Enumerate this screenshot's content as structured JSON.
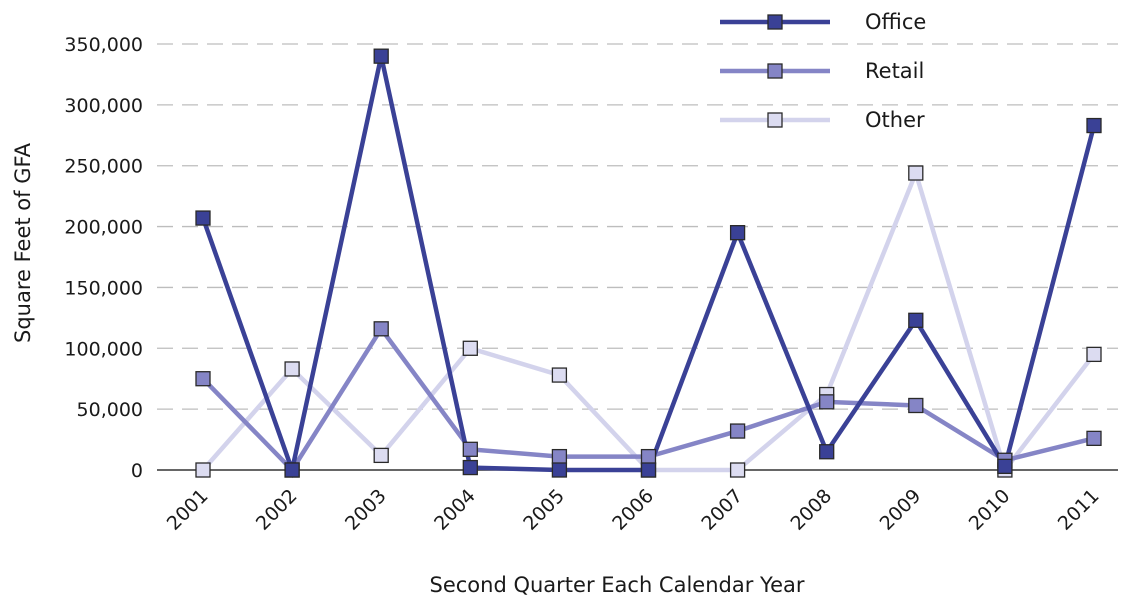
{
  "chart_data": {
    "type": "line",
    "title": "",
    "xlabel": "Second Quarter Each Calendar Year",
    "ylabel": "Square Feet of GFA",
    "categories": [
      "2001",
      "2002",
      "2003",
      "2004",
      "2005",
      "2006",
      "2007",
      "2008",
      "2009",
      "2010",
      "2011"
    ],
    "ylim": [
      0,
      350000
    ],
    "yticks": [
      0,
      50000,
      100000,
      150000,
      200000,
      250000,
      300000,
      350000
    ],
    "ytick_labels": [
      "0",
      "50,000",
      "100,000",
      "150,000",
      "200,000",
      "250,000",
      "300,000",
      "350,000"
    ],
    "grid": "horizontal dashed",
    "legend_position": "top-right",
    "series": [
      {
        "name": "Office",
        "color": "#3a4196",
        "marker_color": "#3a4196",
        "values": [
          207000,
          0,
          340000,
          2000,
          0,
          0,
          195000,
          15000,
          123000,
          3000,
          283000
        ]
      },
      {
        "name": "Retail",
        "color": "#8585c6",
        "marker_color": "#8585c6",
        "values": [
          75000,
          0,
          116000,
          17000,
          11000,
          11000,
          32000,
          56000,
          53000,
          8000,
          26000
        ]
      },
      {
        "name": "Other",
        "color": "#d3d3ec",
        "marker_color": "#dcdcf1",
        "values": [
          0,
          83000,
          12000,
          100000,
          78000,
          0,
          0,
          62000,
          244000,
          0,
          95000
        ]
      }
    ]
  }
}
